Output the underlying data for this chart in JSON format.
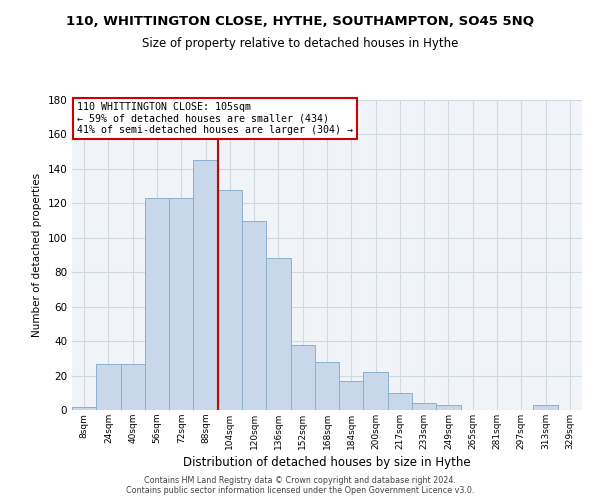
{
  "title": "110, WHITTINGTON CLOSE, HYTHE, SOUTHAMPTON, SO45 5NQ",
  "subtitle": "Size of property relative to detached houses in Hythe",
  "xlabel": "Distribution of detached houses by size in Hythe",
  "ylabel": "Number of detached properties",
  "bar_labels": [
    "8sqm",
    "24sqm",
    "40sqm",
    "56sqm",
    "72sqm",
    "88sqm",
    "104sqm",
    "120sqm",
    "136sqm",
    "152sqm",
    "168sqm",
    "184sqm",
    "200sqm",
    "217sqm",
    "233sqm",
    "249sqm",
    "265sqm",
    "281sqm",
    "297sqm",
    "313sqm",
    "329sqm"
  ],
  "bar_values": [
    2,
    27,
    27,
    123,
    123,
    145,
    128,
    110,
    88,
    38,
    28,
    17,
    22,
    10,
    4,
    3,
    0,
    0,
    0,
    3,
    0
  ],
  "bar_color": "#c8d8ea",
  "bar_edge_color": "#8ab0cc",
  "vline_color": "#cc0000",
  "annotation_title": "110 WHITTINGTON CLOSE: 105sqm",
  "annotation_line1": "← 59% of detached houses are smaller (434)",
  "annotation_line2": "41% of semi-detached houses are larger (304) →",
  "annotation_box_color": "#ffffff",
  "annotation_box_edge": "#cc0000",
  "footer1": "Contains HM Land Registry data © Crown copyright and database right 2024.",
  "footer2": "Contains public sector information licensed under the Open Government Licence v3.0.",
  "ylim": [
    0,
    180
  ],
  "yticks": [
    0,
    20,
    40,
    60,
    80,
    100,
    120,
    140,
    160,
    180
  ],
  "bg_color": "#f0f4f8",
  "grid_color": "#d0d8e0"
}
